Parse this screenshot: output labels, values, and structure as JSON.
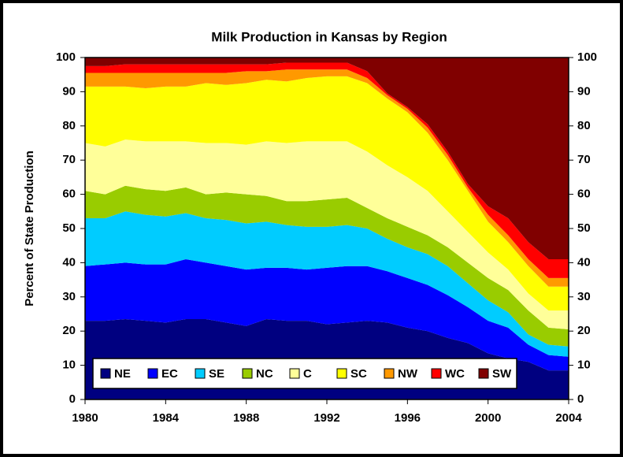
{
  "chart_data": {
    "type": "stacked_area",
    "title": "Milk Production in Kansas by Region",
    "y_label": "Percent of State Production",
    "x": [
      1980,
      1981,
      1982,
      1983,
      1984,
      1985,
      1986,
      1987,
      1988,
      1989,
      1990,
      1991,
      1992,
      1993,
      1994,
      1995,
      1996,
      1997,
      1998,
      1999,
      2000,
      2001,
      2002,
      2003,
      2004
    ],
    "xlim": [
      1980,
      2004
    ],
    "xticks": [
      1980,
      1984,
      1988,
      1992,
      1996,
      2000,
      2004
    ],
    "ylim": [
      0,
      100
    ],
    "yticks": [
      0,
      10,
      20,
      30,
      40,
      50,
      60,
      70,
      80,
      90,
      100
    ],
    "y2lim": [
      0,
      100
    ],
    "y2ticks": [
      0,
      10,
      20,
      30,
      40,
      50,
      60,
      70,
      80,
      90,
      100
    ],
    "grid": false,
    "legend": "bottom",
    "series": [
      {
        "name": "NE",
        "color": "#000080",
        "values": [
          23,
          23,
          23.5,
          23,
          22.5,
          23.5,
          23.5,
          22.5,
          21.5,
          23.5,
          23,
          23,
          22,
          22.5,
          23,
          22.5,
          21,
          20,
          18,
          16.5,
          13.5,
          12,
          11,
          8.5,
          8.5
        ]
      },
      {
        "name": "EC",
        "color": "#0000ff",
        "values": [
          16,
          16.5,
          16.5,
          16.5,
          17,
          17.5,
          16.5,
          16.5,
          16.5,
          15,
          15.5,
          15,
          16.5,
          16.5,
          16,
          15,
          14.5,
          13.5,
          12.5,
          10.5,
          9.5,
          9,
          5,
          4.5,
          4
        ]
      },
      {
        "name": "SE",
        "color": "#00ccff",
        "values": [
          14,
          13.5,
          15,
          14.5,
          14,
          13.5,
          13,
          13.5,
          13.5,
          13.5,
          12.5,
          12.5,
          12,
          12,
          11,
          9.5,
          9,
          9,
          8.5,
          7,
          6,
          4.5,
          3,
          3,
          3
        ]
      },
      {
        "name": "NC",
        "color": "#99cc00",
        "values": [
          8,
          7,
          7.5,
          7.5,
          7.5,
          7.5,
          7,
          8,
          8.5,
          7.5,
          7,
          7.5,
          8,
          8,
          6,
          6,
          6,
          5.5,
          5.5,
          6,
          6.5,
          6.5,
          7,
          5,
          5
        ]
      },
      {
        "name": "C",
        "color": "#ffff99",
        "values": [
          14,
          14,
          13.5,
          14,
          14.5,
          13.5,
          15,
          14.5,
          14.5,
          16,
          17,
          17.5,
          17,
          16.5,
          16.5,
          15.5,
          14.5,
          13,
          10.5,
          9,
          7.5,
          6,
          5,
          5,
          5.5
        ]
      },
      {
        "name": "SC",
        "color": "#ffff00",
        "values": [
          16.5,
          17.5,
          15.5,
          15.5,
          16,
          16,
          17.5,
          17,
          18,
          18,
          18,
          18.5,
          19,
          19,
          20,
          19.5,
          19,
          17,
          15,
          12,
          9,
          8,
          8,
          7,
          7
        ]
      },
      {
        "name": "NW",
        "color": "#ff9900",
        "values": [
          4,
          4,
          4,
          4.5,
          4,
          4,
          3,
          3.5,
          3.5,
          2.5,
          3.5,
          2.5,
          2,
          2,
          1.5,
          1,
          1,
          1.5,
          1.5,
          1,
          2,
          2,
          2,
          2.5,
          2.5
        ]
      },
      {
        "name": "WC",
        "color": "#ff0000",
        "values": [
          2,
          2,
          2.5,
          2.5,
          2.5,
          2.5,
          2.5,
          2.5,
          2,
          2,
          2,
          2,
          2,
          2,
          2,
          0.5,
          0.5,
          1,
          1,
          1,
          2.5,
          5,
          5,
          5.5,
          5.5
        ]
      },
      {
        "name": "SW",
        "color": "#800000",
        "values": [
          2.5,
          2.5,
          2,
          2,
          2,
          2,
          2,
          2,
          2,
          2,
          1.5,
          1.5,
          1.5,
          1.5,
          4,
          10.5,
          14.5,
          19.5,
          27.5,
          37,
          43.5,
          47,
          54,
          59,
          59
        ]
      }
    ]
  }
}
